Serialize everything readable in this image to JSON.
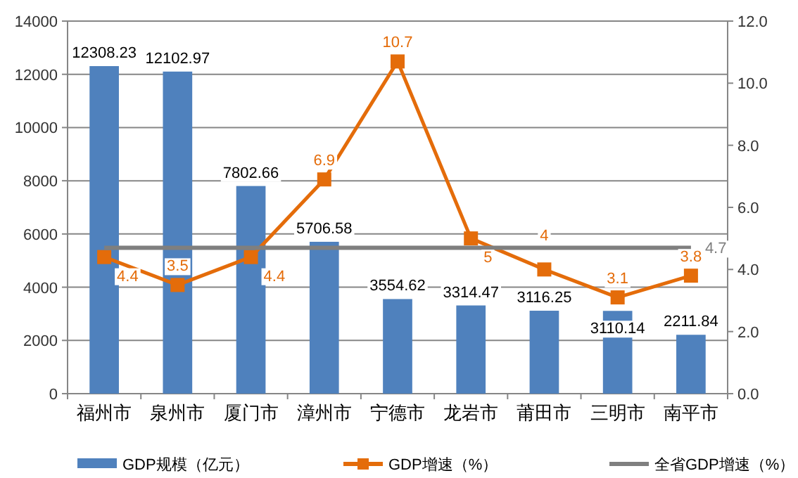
{
  "chart_data": {
    "type": "bar",
    "categories": [
      "福州市",
      "泉州市",
      "厦门市",
      "漳州市",
      "宁德市",
      "龙岩市",
      "莆田市",
      "三明市",
      "南平市"
    ],
    "series": [
      {
        "name": "GDP规模（亿元）",
        "color": "#4f81bd",
        "values": [
          12308.23,
          12102.97,
          7802.66,
          5706.58,
          3554.62,
          3314.47,
          3116.25,
          3110.14,
          2211.84
        ],
        "value_labels": [
          "12308.23",
          "12102.97",
          "7802.66",
          "5706.58",
          "3554.62",
          "3314.47",
          "3116.25",
          "3110.14",
          "2211.84"
        ]
      },
      {
        "name": "GDP增速（%）",
        "type": "line",
        "axis": "y2",
        "color": "#e46c0a",
        "marker": "square",
        "values": [
          4.4,
          3.5,
          4.4,
          6.9,
          10.7,
          5,
          4,
          3.1,
          3.8
        ],
        "value_labels": [
          "4.4",
          "3.5",
          "4.4",
          "6.9",
          "10.7",
          "5",
          "4",
          "3.1",
          "3.8"
        ]
      },
      {
        "name": "全省GDP增速（%）",
        "type": "line",
        "axis": "y2",
        "color": "#7f7f7f",
        "marker": "none",
        "values": [
          4.7,
          4.7,
          4.7,
          4.7,
          4.7,
          4.7,
          4.7,
          4.7,
          4.7
        ],
        "value_labels": [
          null,
          null,
          null,
          null,
          null,
          null,
          null,
          null,
          "4.7"
        ]
      }
    ],
    "ylim": [
      0,
      14000
    ],
    "yticks": [
      0,
      2000,
      4000,
      6000,
      8000,
      10000,
      12000,
      14000
    ],
    "y2lim": [
      0,
      12
    ],
    "y2ticks": [
      {
        "value": 0,
        "label": "0.0"
      },
      {
        "value": 2,
        "label": "2.0"
      },
      {
        "value": 4,
        "label": "4.0"
      },
      {
        "value": 6,
        "label": "6.0"
      },
      {
        "value": 8,
        "label": "8.0"
      },
      {
        "value": 10,
        "label": "10.0"
      },
      {
        "value": 12,
        "label": "12.0"
      }
    ],
    "grid": "y",
    "legend": "bottom"
  }
}
